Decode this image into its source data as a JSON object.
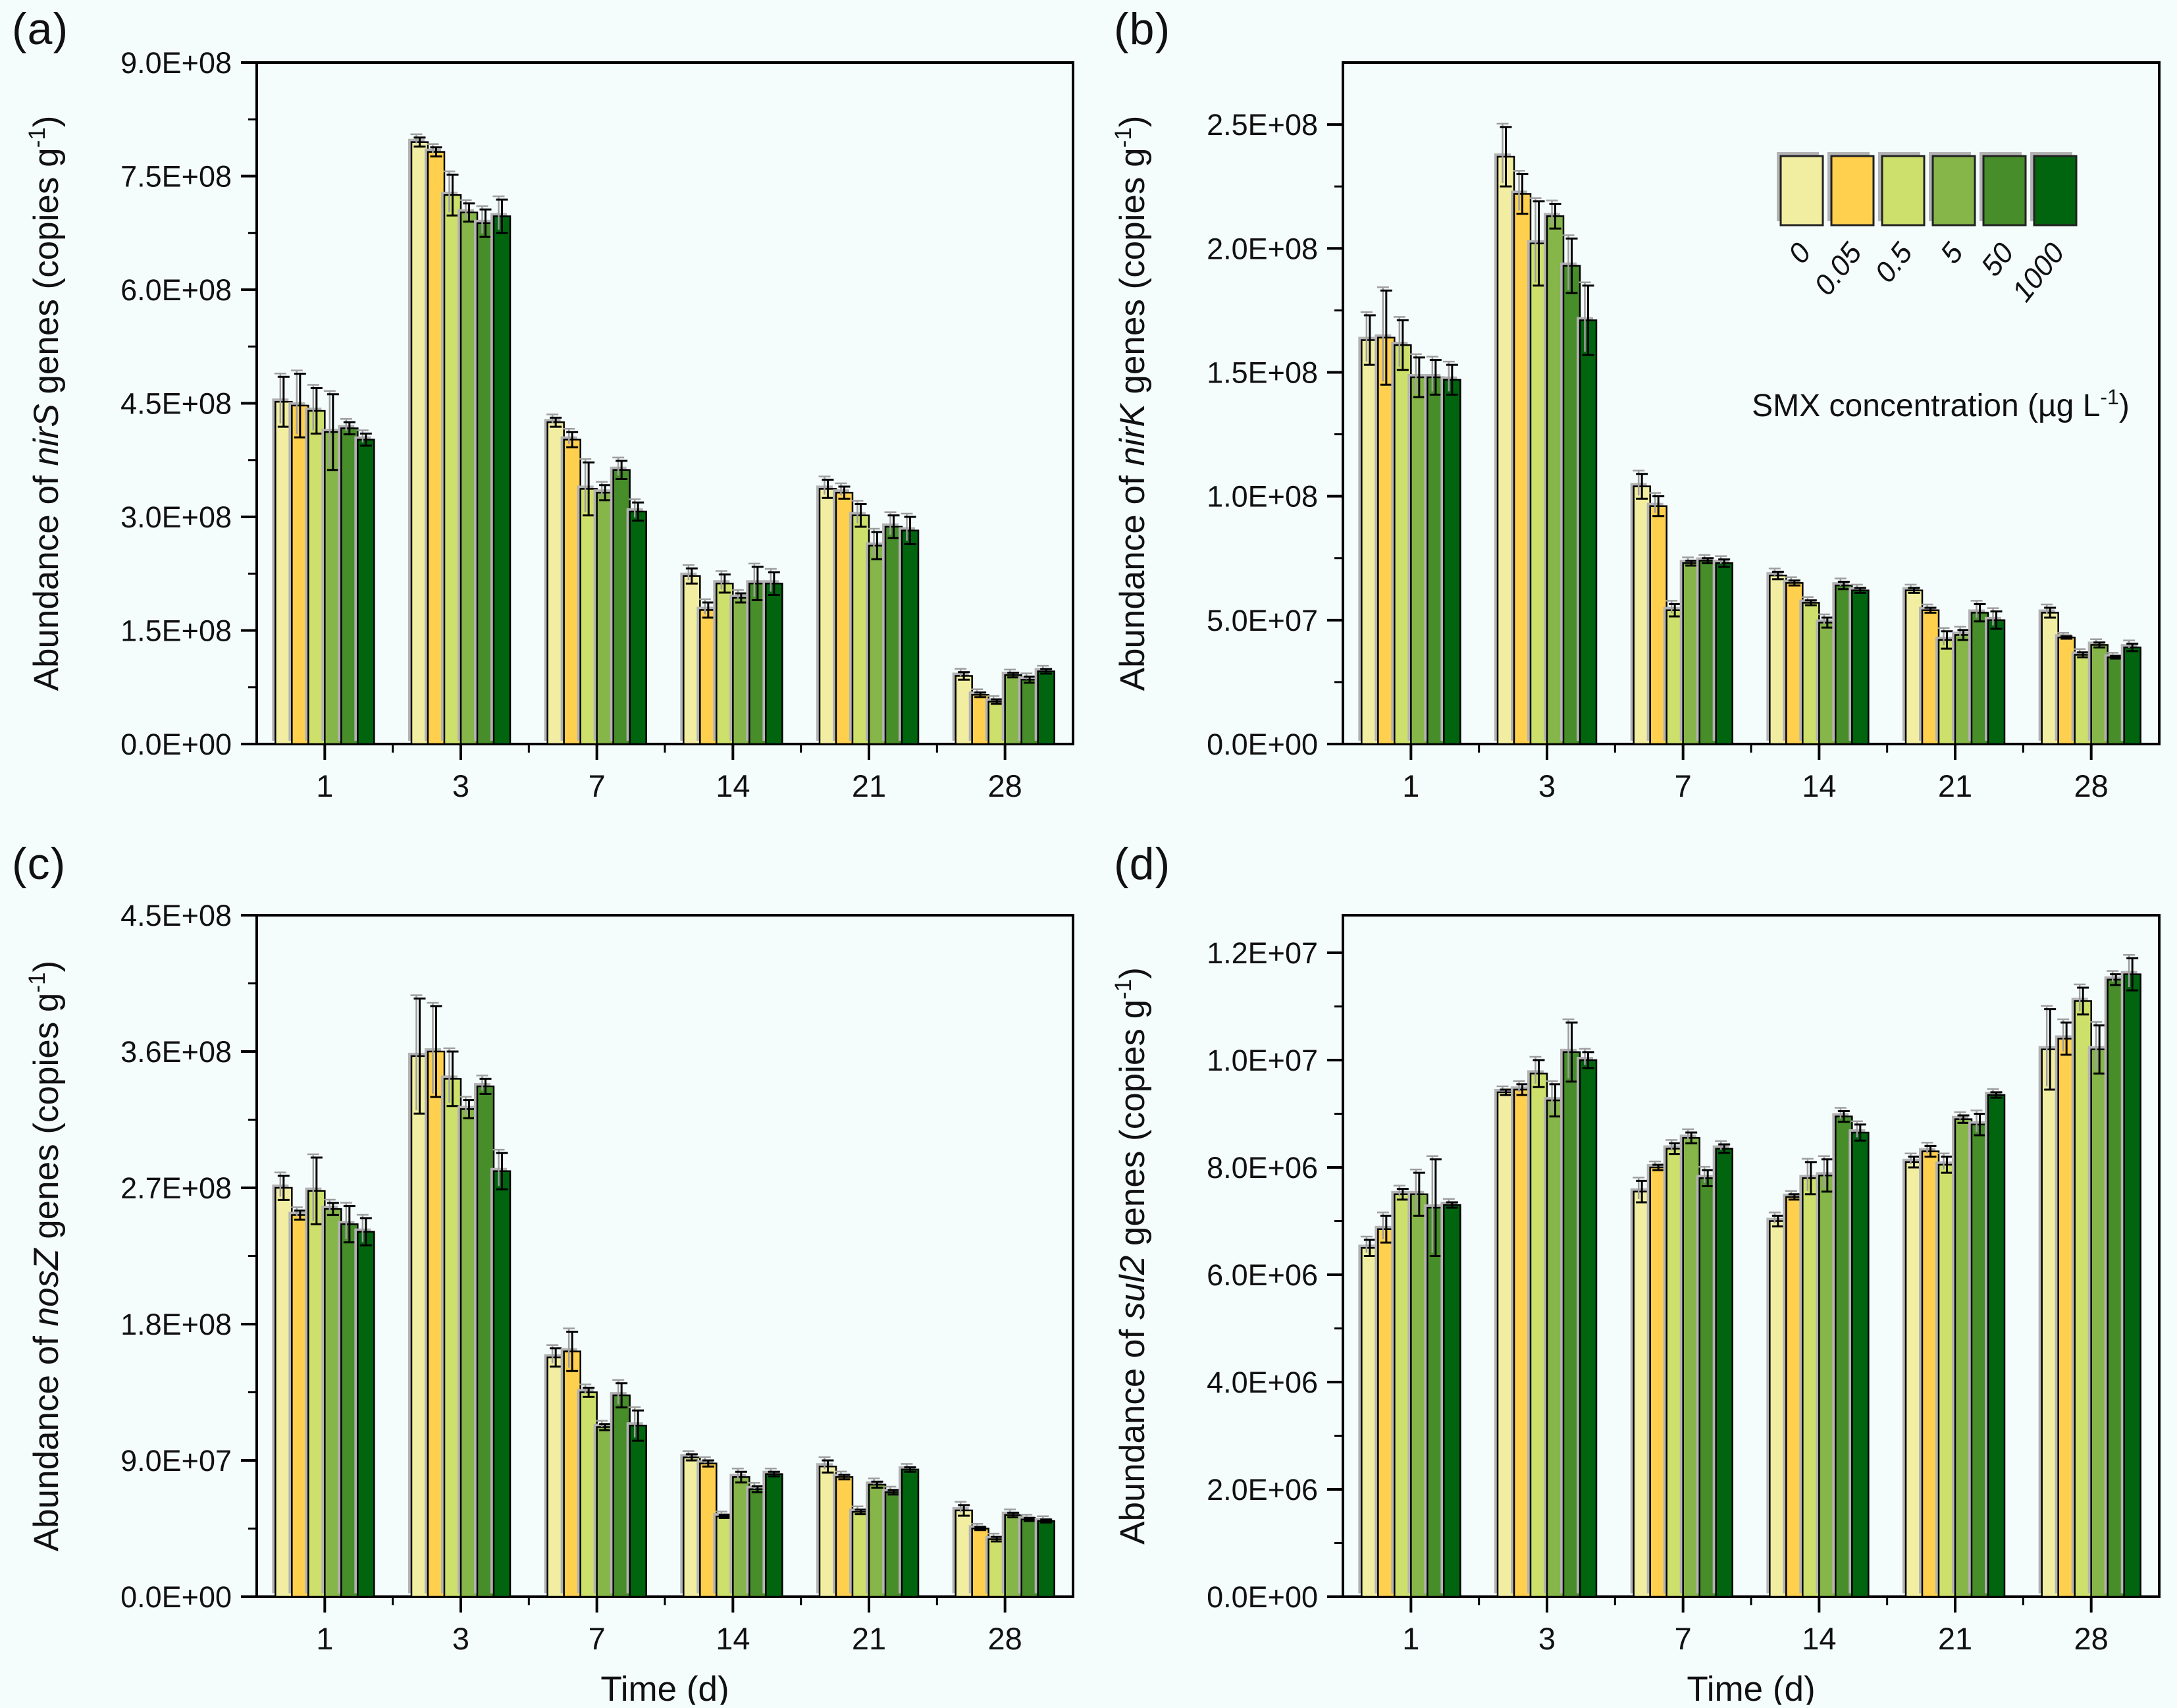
{
  "figure": {
    "background": "#F5FDFC",
    "categories": [
      "1",
      "3",
      "7",
      "14",
      "21",
      "28"
    ],
    "xlabel": "Time (d)",
    "colors": [
      "#F1EEA1",
      "#FFD04E",
      "#CDE06B",
      "#86B54A",
      "#478D2A",
      "#01640F"
    ],
    "bar_outline": "#000000",
    "shadow_color": "#b3b3b3",
    "legend": {
      "labels": [
        "0",
        "0.05",
        "0.5",
        "5",
        "50",
        "1000"
      ],
      "title": {
        "pre": "SMX concentration (µg L",
        "sup": "-1",
        "end": ")"
      },
      "position": "top-right of panel (b)"
    }
  },
  "chart_data": [
    {
      "id": "a",
      "panel_label": "(a)",
      "type": "bar",
      "ylabel": {
        "prefix": "Abundance of ",
        "gene": "nirS",
        "mid": " genes (copies g",
        "sup": "-1",
        "end": ")"
      },
      "ylim": [
        0,
        900000000.0
      ],
      "plot_max": 900000000.0,
      "grid": false,
      "show_xlabel": false,
      "has_legend": false,
      "yticks": [
        {
          "value": 0,
          "label": "0.0E+00"
        },
        {
          "value": 150000000.0,
          "label": "1.5E+08"
        },
        {
          "value": 300000000.0,
          "label": "3.0E+08"
        },
        {
          "value": 450000000.0,
          "label": "4.5E+08"
        },
        {
          "value": 600000000.0,
          "label": "6.0E+08"
        },
        {
          "value": 750000000.0,
          "label": "7.5E+08"
        },
        {
          "value": 900000000.0,
          "label": "9.0E+08"
        }
      ],
      "series": [
        {
          "name": "0",
          "values": [
            452000000.0,
            795000000.0,
            425000000.0,
            222000000.0,
            337000000.0,
            90000000.0
          ],
          "errors": [
            33000000.0,
            6000000.0,
            6000000.0,
            10000000.0,
            12000000.0,
            5000000.0
          ]
        },
        {
          "name": "0.05",
          "values": [
            447000000.0,
            782000000.0,
            402000000.0,
            177000000.0,
            332000000.0,
            65000000.0
          ],
          "errors": [
            42000000.0,
            6000000.0,
            10000000.0,
            10000000.0,
            8000000.0,
            3000000.0
          ]
        },
        {
          "name": "0.5",
          "values": [
            440000000.0,
            725000000.0,
            337000000.0,
            212000000.0,
            302000000.0,
            56000000.0
          ],
          "errors": [
            30000000.0,
            27000000.0,
            35000000.0,
            12000000.0,
            15000000.0,
            3000000.0
          ]
        },
        {
          "name": "5",
          "values": [
            412000000.0,
            702000000.0,
            332000000.0,
            193000000.0,
            262000000.0,
            91000000.0
          ],
          "errors": [
            50000000.0,
            12000000.0,
            10000000.0,
            6000000.0,
            18000000.0,
            3000000.0
          ]
        },
        {
          "name": "50",
          "values": [
            417000000.0,
            688000000.0,
            362000000.0,
            212000000.0,
            287000000.0,
            85000000.0
          ],
          "errors": [
            8000000.0,
            18000000.0,
            12000000.0,
            22000000.0,
            15000000.0,
            4000000.0
          ]
        },
        {
          "name": "1000",
          "values": [
            402000000.0,
            697000000.0,
            307000000.0,
            212000000.0,
            282000000.0,
            96000000.0
          ],
          "errors": [
            8000000.0,
            22000000.0,
            12000000.0,
            15000000.0,
            18000000.0,
            3000000.0
          ]
        }
      ]
    },
    {
      "id": "b",
      "panel_label": "(b)",
      "type": "bar",
      "ylabel": {
        "prefix": "Abundance of ",
        "gene": "nirK",
        "mid": " genes (copies g",
        "sup": "-1",
        "end": ")"
      },
      "ylim": [
        0,
        250000000.0
      ],
      "plot_max": 275000000.0,
      "grid": false,
      "show_xlabel": false,
      "has_legend": true,
      "yticks": [
        {
          "value": 0,
          "label": "0.0E+00"
        },
        {
          "value": 50000000.0,
          "label": "5.0E+07"
        },
        {
          "value": 100000000.0,
          "label": "1.0E+08"
        },
        {
          "value": 150000000.0,
          "label": "1.5E+08"
        },
        {
          "value": 200000000.0,
          "label": "2.0E+08"
        },
        {
          "value": 250000000.0,
          "label": "2.5E+08"
        }
      ],
      "series": [
        {
          "name": "0",
          "values": [
            163000000.0,
            237000000.0,
            104000000.0,
            68000000.0,
            62000000.0,
            53000000.0
          ],
          "errors": [
            10000000.0,
            12000000.0,
            5000000.0,
            1500000.0,
            1000000.0,
            2000000.0
          ]
        },
        {
          "name": "0.05",
          "values": [
            164000000.0,
            222000000.0,
            96000000.0,
            65000000.0,
            54000000.0,
            43000000.0
          ],
          "errors": [
            19000000.0,
            8000000.0,
            4000000.0,
            1000000.0,
            1000000.0,
            500000.0
          ]
        },
        {
          "name": "0.5",
          "values": [
            161000000.0,
            202000000.0,
            54000000.0,
            57000000.0,
            42000000.0,
            36000000.0
          ],
          "errors": [
            10000000.0,
            17000000.0,
            2500000.0,
            1000000.0,
            3500000.0,
            1000000.0
          ]
        },
        {
          "name": "5",
          "values": [
            148000000.0,
            213000000.0,
            73000000.0,
            49000000.0,
            44000000.0,
            40000000.0
          ],
          "errors": [
            8000000.0,
            5000000.0,
            1000000.0,
            2000000.0,
            2000000.0,
            1000000.0
          ]
        },
        {
          "name": "50",
          "values": [
            148000000.0,
            193000000.0,
            74000000.0,
            64000000.0,
            53000000.0,
            35000000.0
          ],
          "errors": [
            7000000.0,
            11000000.0,
            1000000.0,
            1500000.0,
            3500000.0,
            500000.0
          ]
        },
        {
          "name": "1000",
          "values": [
            147000000.0,
            171000000.0,
            73000000.0,
            62000000.0,
            50000000.0,
            39000000.0
          ],
          "errors": [
            6000000.0,
            14000000.0,
            1500000.0,
            1000000.0,
            3500000.0,
            1500000.0
          ]
        }
      ]
    },
    {
      "id": "c",
      "panel_label": "(c)",
      "type": "bar",
      "ylabel": {
        "prefix": "Abundance of ",
        "gene": "nosZ",
        "mid": " genes (copies g",
        "sup": "-1",
        "end": ")"
      },
      "ylim": [
        0,
        450000000.0
      ],
      "plot_max": 450000000.0,
      "grid": false,
      "show_xlabel": true,
      "has_legend": false,
      "yticks": [
        {
          "value": 0,
          "label": "0.0E+00"
        },
        {
          "value": 90000000.0,
          "label": "9.0E+07"
        },
        {
          "value": 180000000.0,
          "label": "1.8E+08"
        },
        {
          "value": 270000000.0,
          "label": "2.7E+08"
        },
        {
          "value": 360000000.0,
          "label": "3.6E+08"
        },
        {
          "value": 450000000.0,
          "label": "4.5E+08"
        }
      ],
      "series": [
        {
          "name": "0",
          "values": [
            270000000.0,
            357000000.0,
            158000000.0,
            92000000.0,
            86000000.0,
            57000000.0
          ],
          "errors": [
            8000000.0,
            38000000.0,
            6000000.0,
            2000000.0,
            4000000.0,
            3500000.0
          ]
        },
        {
          "name": "0.05",
          "values": [
            252000000.0,
            360000000.0,
            162000000.0,
            88000000.0,
            79000000.0,
            45000000.0
          ],
          "errors": [
            3000000.0,
            30000000.0,
            13000000.0,
            2000000.0,
            1500000.0,
            1000000.0
          ]
        },
        {
          "name": "0.5",
          "values": [
            268000000.0,
            342000000.0,
            135000000.0,
            53000000.0,
            56000000.0,
            38000000.0
          ],
          "errors": [
            22000000.0,
            18000000.0,
            3000000.0,
            1000000.0,
            1500000.0,
            1500000.0
          ]
        },
        {
          "name": "5",
          "values": [
            256000000.0,
            322000000.0,
            112000000.0,
            79000000.0,
            74000000.0,
            54000000.0
          ],
          "errors": [
            4000000.0,
            6000000.0,
            2000000.0,
            3500000.0,
            2000000.0,
            1500000.0
          ]
        },
        {
          "name": "50",
          "values": [
            246000000.0,
            337000000.0,
            133000000.0,
            71000000.0,
            69000000.0,
            51000000.0
          ],
          "errors": [
            12000000.0,
            5000000.0,
            8000000.0,
            2000000.0,
            1500000.0,
            1000000.0
          ]
        },
        {
          "name": "1000",
          "values": [
            241000000.0,
            281000000.0,
            113000000.0,
            81000000.0,
            84000000.0,
            50000000.0
          ],
          "errors": [
            9000000.0,
            12000000.0,
            10000000.0,
            1500000.0,
            1500000.0,
            1000000.0
          ]
        }
      ]
    },
    {
      "id": "d",
      "panel_label": "(d)",
      "type": "bar",
      "ylabel": {
        "prefix": "Abundance of ",
        "gene": "sul2",
        "mid": " genes (copies g",
        "sup": "-1",
        "end": ")"
      },
      "ylim": [
        0,
        12000000.0
      ],
      "plot_max": 12700000.0,
      "grid": false,
      "show_xlabel": true,
      "has_legend": false,
      "yticks": [
        {
          "value": 0,
          "label": "0.0E+00"
        },
        {
          "value": 2000000.0,
          "label": "2.0E+06"
        },
        {
          "value": 4000000.0,
          "label": "4.0E+06"
        },
        {
          "value": 6000000.0,
          "label": "6.0E+06"
        },
        {
          "value": 8000000.0,
          "label": "8.0E+06"
        },
        {
          "value": 10000000.0,
          "label": "1.0E+07"
        },
        {
          "value": 12000000.0,
          "label": "1.2E+07"
        }
      ],
      "series": [
        {
          "name": "0",
          "values": [
            6500000.0,
            9400000.0,
            7550000.0,
            7000000.0,
            8100000.0,
            10200000.0
          ],
          "errors": [
            150000.0,
            50000.0,
            200000.0,
            100000.0,
            100000.0,
            750000.0
          ]
        },
        {
          "name": "0.05",
          "values": [
            6850000.0,
            9450000.0,
            8000000.0,
            7450000.0,
            8300000.0,
            10400000.0
          ],
          "errors": [
            250000.0,
            100000.0,
            50000.0,
            50000.0,
            100000.0,
            300000.0
          ]
        },
        {
          "name": "0.5",
          "values": [
            7500000.0,
            9750000.0,
            8350000.0,
            7800000.0,
            8050000.0,
            11100000.0
          ],
          "errors": [
            100000.0,
            250000.0,
            100000.0,
            300000.0,
            150000.0,
            250000.0
          ]
        },
        {
          "name": "5",
          "values": [
            7500000.0,
            9250000.0,
            8550000.0,
            7850000.0,
            8900000.0,
            10200000.0
          ],
          "errors": [
            400000.0,
            300000.0,
            100000.0,
            300000.0,
            70000.0,
            450000.0
          ]
        },
        {
          "name": "50",
          "values": [
            7250000.0,
            10150000.0,
            7800000.0,
            8950000.0,
            8800000.0,
            11500000.0
          ],
          "errors": [
            900000.0,
            550000.0,
            150000.0,
            100000.0,
            200000.0,
            100000.0
          ]
        },
        {
          "name": "1000",
          "values": [
            7300000.0,
            10000000.0,
            8350000.0,
            8650000.0,
            9350000.0,
            11600000.0
          ],
          "errors": [
            50000.0,
            150000.0,
            80000.0,
            150000.0,
            50000.0,
            300000.0
          ]
        }
      ]
    }
  ]
}
